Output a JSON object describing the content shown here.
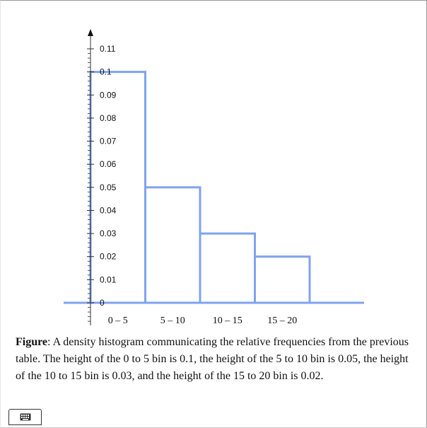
{
  "chart_data": {
    "type": "bar",
    "categories": [
      "0 – 5",
      "5 – 10",
      "10 – 15",
      "15 – 20"
    ],
    "values": [
      0.1,
      0.05,
      0.03,
      0.02
    ],
    "yticks": [
      "0",
      "0.01",
      "0.02",
      "0.03",
      "0.04",
      "0.05",
      "0.06",
      "0.07",
      "0.08",
      "0.09",
      "0.1",
      "0.11"
    ],
    "ylim": [
      0,
      0.11
    ],
    "title": "",
    "xlabel": "",
    "ylabel": "",
    "bar_color": "#7fa3ee",
    "axis_color": "#333333"
  },
  "caption": {
    "bold": "Figure",
    "text": ": A density histogram communicating the relative frequencies from the previous table. The height of the 0 to 5 bin is 0.1, the height of the 5 to 10 bin is 0.05, the height of the 10 to 15 bin is 0.03, and the height of the 15 to 20 bin is 0.02."
  },
  "keyboard_button": {
    "icon": "keyboard-icon"
  }
}
